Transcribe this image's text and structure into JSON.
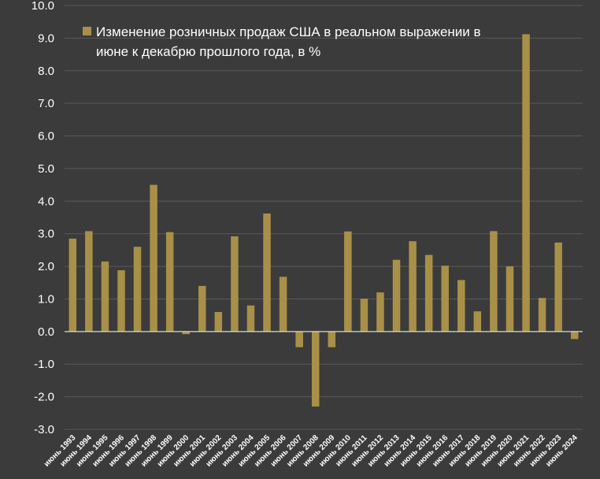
{
  "chart_data": {
    "type": "bar",
    "legend": {
      "line1": "Изменение розничных продаж США в реальном выражении в",
      "line2": "июне к декабрю прошлого года, в %",
      "placement": "top-left"
    },
    "ylim": [
      -3.0,
      10.0
    ],
    "yticks": [
      "-3.0",
      "-2.0",
      "-1.0",
      "0.0",
      "1.0",
      "2.0",
      "3.0",
      "4.0",
      "5.0",
      "6.0",
      "7.0",
      "8.0",
      "9.0",
      "10.0"
    ],
    "grid": true,
    "categories": [
      "июнь 1993",
      "июнь 1994",
      "июнь 1995",
      "июнь 1996",
      "июнь 1997",
      "июнь 1998",
      "июнь 1999",
      "июнь 2000",
      "июнь 2001",
      "июнь 2002",
      "июнь 2003",
      "июнь 2004",
      "июнь 2005",
      "июнь 2006",
      "июнь 2007",
      "июнь 2008",
      "июнь 2009",
      "июнь 2010",
      "июнь 2011",
      "июнь 2012",
      "июнь 2013",
      "июнь 2014",
      "июнь 2015",
      "июнь 2016",
      "июнь 2017",
      "июнь 2018",
      "июнь 2019",
      "июнь 2020",
      "июнь 2021",
      "июнь 2022",
      "июнь 2023",
      "июнь 2024"
    ],
    "values": [
      2.85,
      3.08,
      2.15,
      1.88,
      2.6,
      4.5,
      3.05,
      -0.08,
      1.4,
      0.6,
      2.92,
      0.8,
      3.62,
      1.68,
      -0.48,
      -2.3,
      -0.48,
      3.07,
      1.01,
      1.2,
      2.2,
      2.77,
      2.35,
      2.02,
      1.58,
      0.62,
      3.08,
      2.0,
      9.12,
      1.03,
      2.73,
      -0.23
    ],
    "bar_color": "#a89048"
  }
}
